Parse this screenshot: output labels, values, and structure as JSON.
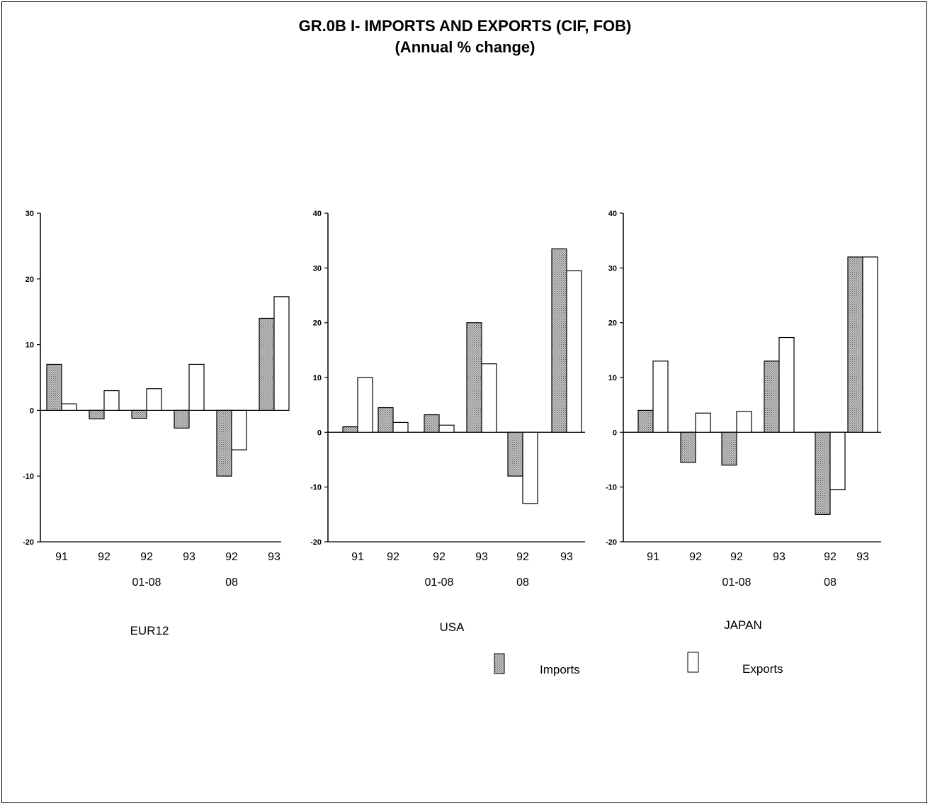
{
  "title": "GR.0B I- IMPORTS AND EXPORTS (CIF, FOB)",
  "subtitle": "(Annual % change)",
  "colors": {
    "imports_fill": "#b5b5b5",
    "exports_fill": "#ffffff",
    "stroke": "#000000"
  },
  "legend": {
    "placement": "bottom-right",
    "imports_label": "Imports",
    "exports_label": "Exports"
  },
  "chart_data": [
    {
      "type": "bar",
      "name": "EUR12",
      "categories": [
        "91",
        "92",
        "92",
        "93",
        "92",
        "93"
      ],
      "category_sublabels": [
        "",
        "",
        "01-08",
        "",
        "08",
        ""
      ],
      "series": [
        {
          "name": "Imports",
          "values": [
            7,
            -1.3,
            -1.2,
            -2.7,
            -10,
            14
          ]
        },
        {
          "name": "Exports",
          "values": [
            1,
            3,
            3.3,
            7,
            -6,
            17.3
          ]
        }
      ],
      "ylim": [
        -20,
        30
      ],
      "yticks": [
        -20,
        -10,
        0,
        10,
        20,
        30
      ]
    },
    {
      "type": "bar",
      "name": "USA",
      "categories": [
        "91",
        "92",
        "92",
        "93",
        "92",
        "93"
      ],
      "category_sublabels": [
        "",
        "",
        "01-08",
        "",
        "08",
        ""
      ],
      "series": [
        {
          "name": "Imports",
          "values": [
            1,
            4.5,
            3.2,
            20,
            -8,
            33.5
          ]
        },
        {
          "name": "Exports",
          "values": [
            10,
            1.8,
            1.3,
            12.5,
            -13,
            29.5
          ]
        }
      ],
      "ylim": [
        -20,
        40
      ],
      "yticks": [
        -20,
        -10,
        0,
        10,
        20,
        30,
        40
      ]
    },
    {
      "type": "bar",
      "name": "JAPAN",
      "categories": [
        "91",
        "92",
        "92",
        "93",
        "92",
        "93"
      ],
      "category_sublabels": [
        "",
        "",
        "01-08",
        "",
        "08",
        ""
      ],
      "series": [
        {
          "name": "Imports",
          "values": [
            4,
            -5.5,
            -6,
            13,
            -15,
            32
          ]
        },
        {
          "name": "Exports",
          "values": [
            13,
            3.5,
            3.8,
            17.3,
            -10.5,
            32
          ]
        }
      ],
      "ylim": [
        -20,
        40
      ],
      "yticks": [
        -20,
        -10,
        0,
        10,
        20,
        30,
        40
      ]
    }
  ]
}
